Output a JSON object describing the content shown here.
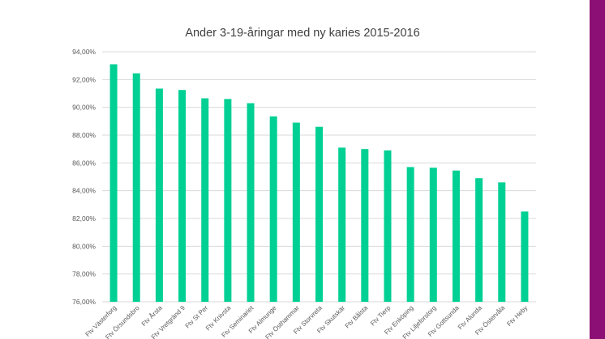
{
  "chart_data": {
    "type": "bar",
    "title": "Ander 3-19-åringar med ny karies 2015-2016",
    "categories": [
      "Ftv Västerforg",
      "Ftv Örsundsbro",
      "Ftv Årsta",
      "Ftv Vretgränd 9",
      "Ftv St Per",
      "Ftv Knivsta",
      "Ftv Seminariet",
      "Ftv Almunge",
      "Ftv Östhammar",
      "Ftv Storvreta",
      "Ftv Skutskär",
      "Ftv Bålsta",
      "Ftv Tierp",
      "Ftv Enköping",
      "Ftv Liljeforstorg",
      "Ftv Gottsunda",
      "Ftv Alunda",
      "Ftv Östervåla",
      "Ftv Heby"
    ],
    "values": [
      93.1,
      92.45,
      91.35,
      91.25,
      90.65,
      90.6,
      90.3,
      89.35,
      88.9,
      88.6,
      87.1,
      87.0,
      86.9,
      85.7,
      85.65,
      85.45,
      84.9,
      84.6,
      82.5
    ],
    "ylim": [
      76,
      94
    ],
    "yticks": [
      "76,00%",
      "78,00%",
      "80,00%",
      "82,00%",
      "84,00%",
      "86,00%",
      "88,00%",
      "90,00%",
      "92,00%",
      "94,00%"
    ],
    "ytick_values": [
      76,
      78,
      80,
      82,
      84,
      86,
      88,
      90,
      92,
      94
    ],
    "grid": true,
    "bar_color": "#00d093"
  },
  "accent_bar_color": "#8b0f74"
}
